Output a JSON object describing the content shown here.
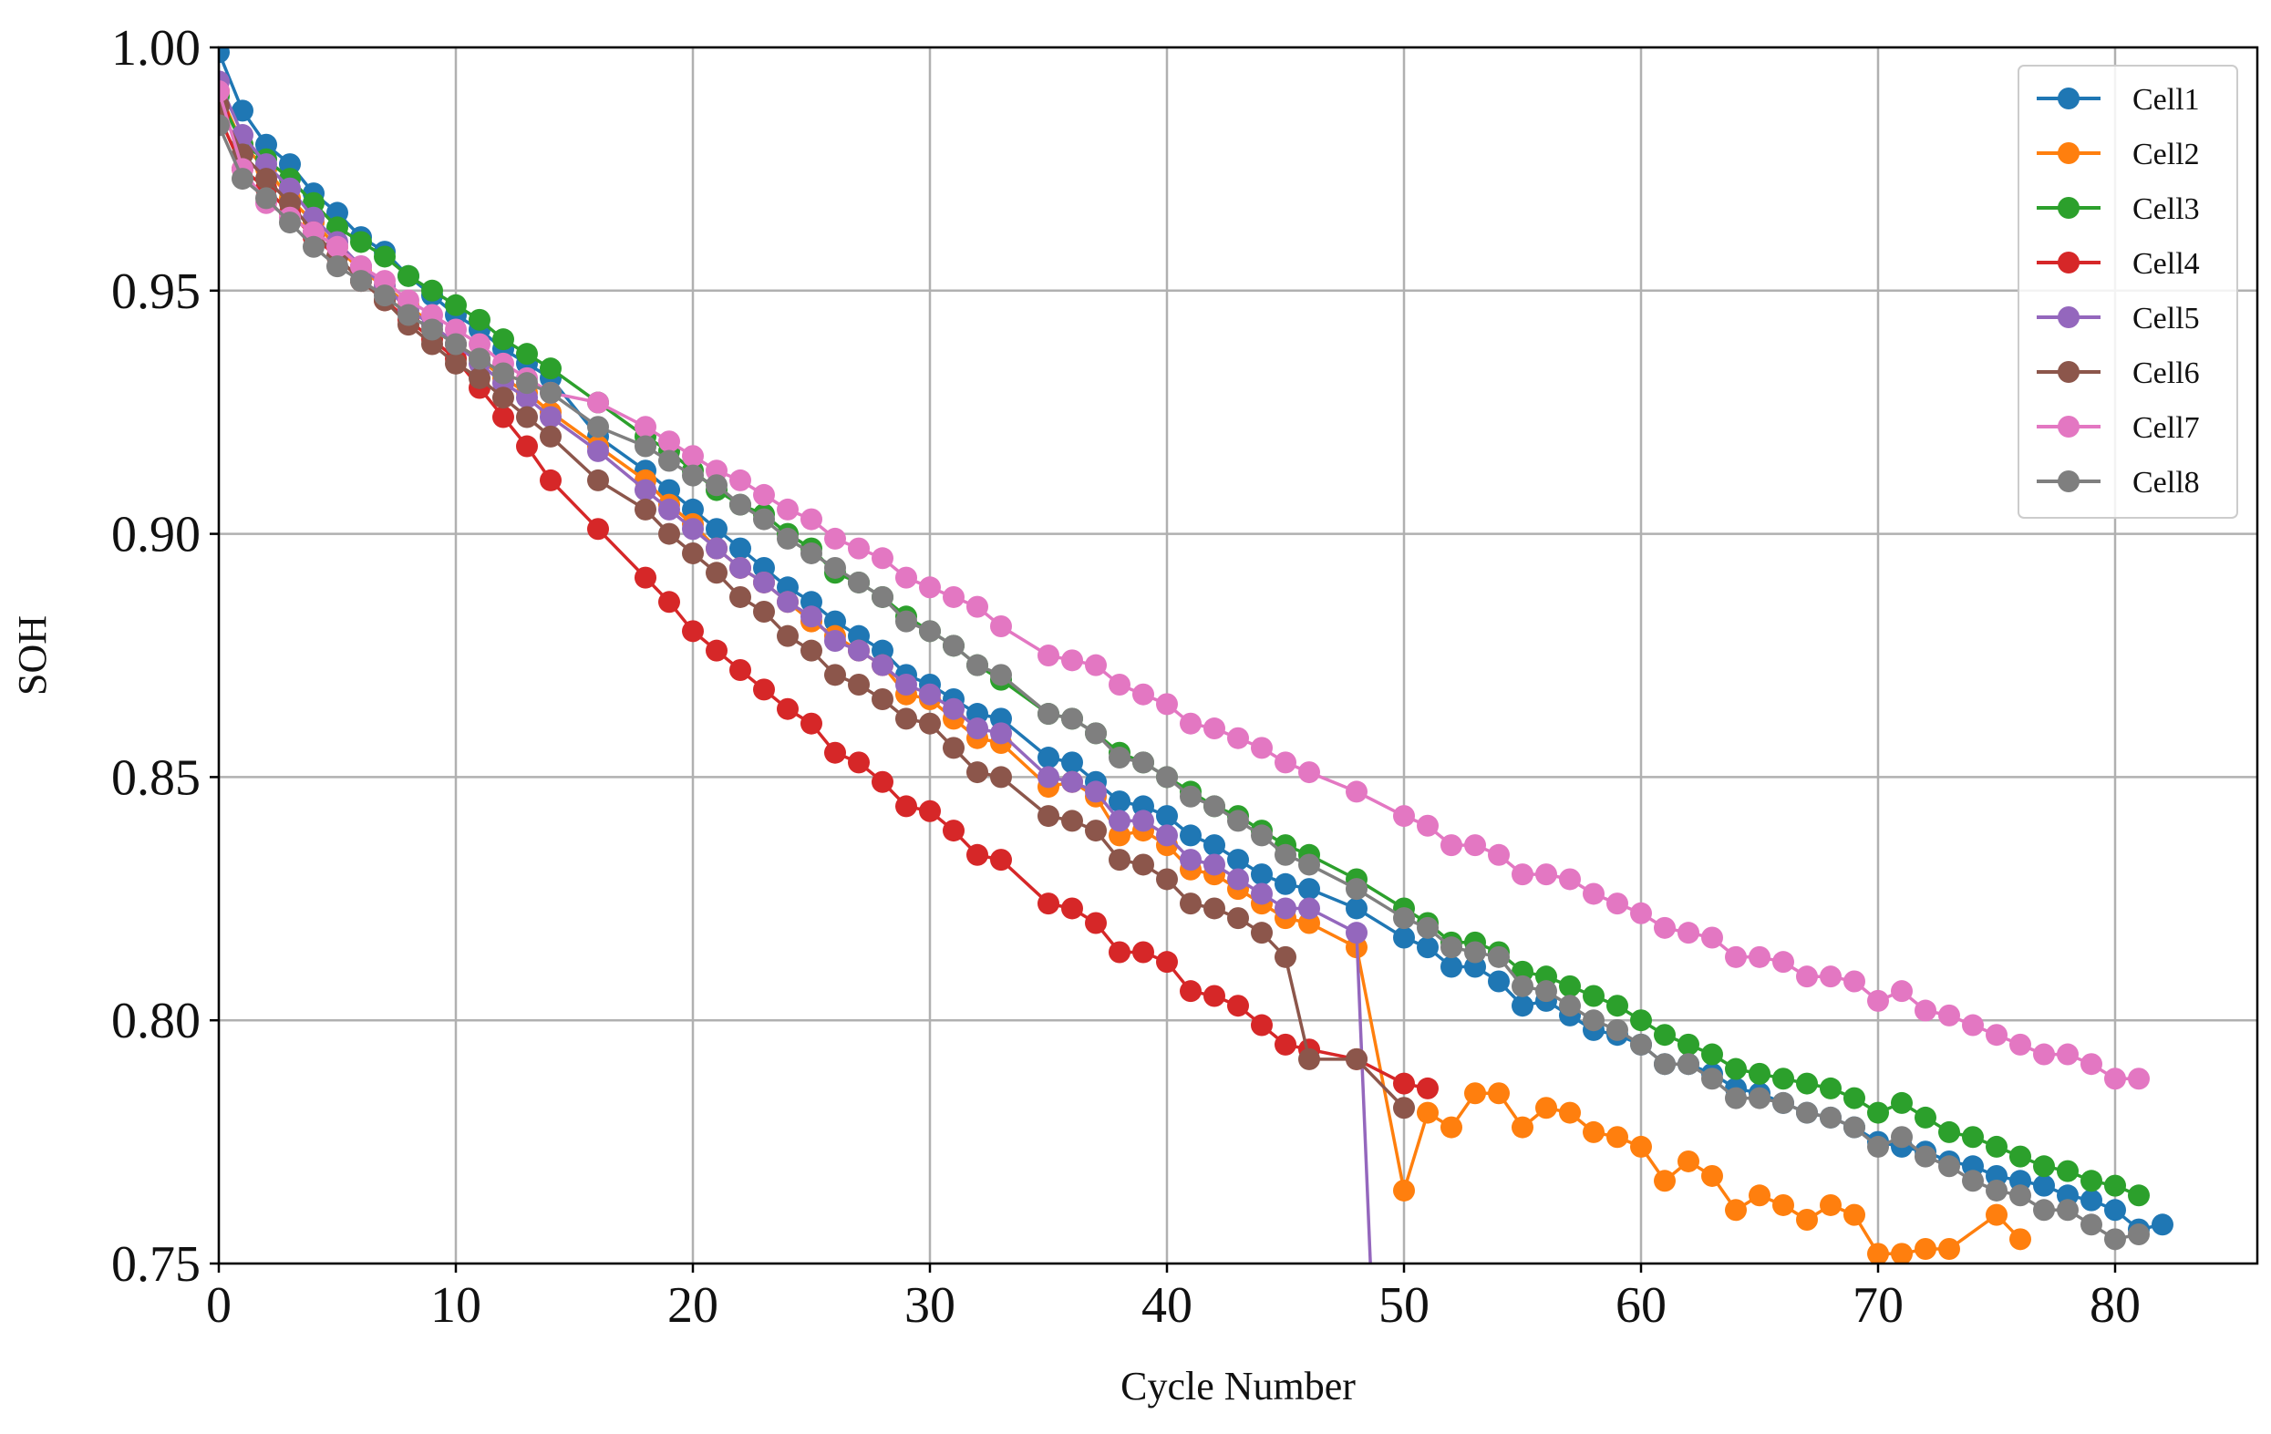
{
  "chart_data": {
    "type": "line",
    "xlabel": "Cycle Number",
    "ylabel": "SOH",
    "xlim": [
      0,
      86
    ],
    "ylim": [
      0.75,
      1.0
    ],
    "xticks": [
      "0",
      "10",
      "20",
      "30",
      "40",
      "50",
      "60",
      "70",
      "80"
    ],
    "yticks": [
      "0.75",
      "0.80",
      "0.85",
      "0.90",
      "0.95",
      "1.00"
    ],
    "grid": true,
    "legend_position": "top-right",
    "series": [
      {
        "name": "Cell1",
        "color": "#1f77b4",
        "x": [
          0,
          1,
          2,
          3,
          4,
          5,
          6,
          7,
          8,
          9,
          10,
          11,
          12,
          13,
          14,
          16,
          18,
          19,
          20,
          21,
          22,
          23,
          24,
          25,
          26,
          27,
          28,
          29,
          30,
          31,
          32,
          33,
          35,
          36,
          37,
          38,
          39,
          40,
          41,
          42,
          43,
          44,
          45,
          46,
          48,
          50,
          51,
          52,
          53,
          54,
          55,
          56,
          57,
          58,
          59,
          60,
          61,
          62,
          63,
          64,
          65,
          66,
          67,
          68,
          69,
          70,
          71,
          72,
          73,
          74,
          75,
          76,
          77,
          78,
          79,
          80,
          81,
          82
        ],
        "y": [
          0.999,
          0.987,
          0.98,
          0.976,
          0.97,
          0.966,
          0.961,
          0.958,
          0.953,
          0.949,
          0.945,
          0.942,
          0.938,
          0.935,
          0.932,
          0.92,
          0.913,
          0.909,
          0.905,
          0.901,
          0.897,
          0.893,
          0.889,
          0.886,
          0.882,
          0.879,
          0.876,
          0.871,
          0.869,
          0.866,
          0.863,
          0.862,
          0.854,
          0.853,
          0.849,
          0.845,
          0.844,
          0.842,
          0.838,
          0.836,
          0.833,
          0.83,
          0.828,
          0.827,
          0.823,
          0.817,
          0.815,
          0.811,
          0.811,
          0.808,
          0.803,
          0.804,
          0.801,
          0.798,
          0.797,
          0.795,
          0.791,
          0.791,
          0.789,
          0.786,
          0.785,
          0.783,
          0.781,
          0.78,
          0.778,
          0.775,
          0.774,
          0.773,
          0.771,
          0.77,
          0.768,
          0.767,
          0.766,
          0.764,
          0.763,
          0.761,
          0.757,
          0.758
        ]
      },
      {
        "name": "Cell2",
        "color": "#ff7f0e",
        "x": [
          0,
          1,
          2,
          3,
          4,
          5,
          6,
          7,
          8,
          9,
          10,
          11,
          12,
          13,
          14,
          16,
          18,
          19,
          20,
          21,
          22,
          23,
          24,
          25,
          26,
          27,
          28,
          29,
          30,
          31,
          32,
          33,
          35,
          36,
          37,
          38,
          39,
          40,
          41,
          42,
          43,
          44,
          45,
          46,
          48,
          50,
          51,
          52,
          53,
          54,
          55,
          56,
          57,
          58,
          59,
          60,
          61,
          62,
          63,
          64,
          65,
          66,
          67,
          68,
          69,
          70,
          71,
          72,
          73,
          75,
          76
        ],
        "y": [
          0.991,
          0.98,
          0.975,
          0.969,
          0.964,
          0.959,
          0.954,
          0.951,
          0.947,
          0.943,
          0.939,
          0.936,
          0.932,
          0.929,
          0.925,
          0.918,
          0.911,
          0.906,
          0.902,
          0.897,
          0.893,
          0.89,
          0.886,
          0.882,
          0.879,
          0.876,
          0.873,
          0.867,
          0.866,
          0.862,
          0.858,
          0.857,
          0.848,
          0.849,
          0.846,
          0.838,
          0.839,
          0.836,
          0.831,
          0.83,
          0.827,
          0.824,
          0.821,
          0.82,
          0.815,
          0.765,
          0.781,
          0.778,
          0.785,
          0.785,
          0.778,
          0.782,
          0.781,
          0.777,
          0.776,
          0.774,
          0.767,
          0.771,
          0.768,
          0.761,
          0.764,
          0.762,
          0.759,
          0.762,
          0.76,
          0.752,
          0.752,
          0.753,
          0.753,
          0.76,
          0.755
        ]
      },
      {
        "name": "Cell3",
        "color": "#2ca02c",
        "x": [
          0,
          1,
          2,
          3,
          4,
          5,
          6,
          7,
          8,
          9,
          10,
          11,
          12,
          13,
          14,
          16,
          18,
          19,
          20,
          21,
          22,
          23,
          24,
          25,
          26,
          27,
          28,
          29,
          30,
          31,
          32,
          33,
          35,
          36,
          37,
          38,
          39,
          40,
          41,
          42,
          43,
          44,
          45,
          46,
          48,
          50,
          51,
          52,
          53,
          54,
          55,
          56,
          57,
          58,
          59,
          60,
          61,
          62,
          63,
          64,
          65,
          66,
          67,
          68,
          69,
          70,
          71,
          72,
          73,
          74,
          75,
          76,
          77,
          78,
          79,
          80,
          81
        ],
        "y": [
          0.99,
          0.98,
          0.977,
          0.973,
          0.968,
          0.963,
          0.96,
          0.957,
          0.953,
          0.95,
          0.947,
          0.944,
          0.94,
          0.937,
          0.934,
          0.927,
          0.92,
          0.917,
          0.913,
          0.909,
          0.906,
          0.904,
          0.9,
          0.897,
          0.892,
          0.89,
          0.887,
          0.883,
          0.88,
          0.877,
          0.873,
          0.87,
          0.863,
          0.862,
          0.859,
          0.855,
          0.853,
          0.85,
          0.847,
          0.844,
          0.842,
          0.839,
          0.836,
          0.834,
          0.829,
          0.823,
          0.82,
          0.816,
          0.816,
          0.814,
          0.81,
          0.809,
          0.807,
          0.805,
          0.803,
          0.8,
          0.797,
          0.795,
          0.793,
          0.79,
          0.789,
          0.788,
          0.787,
          0.786,
          0.784,
          0.781,
          0.783,
          0.78,
          0.777,
          0.776,
          0.774,
          0.772,
          0.77,
          0.769,
          0.767,
          0.766,
          0.764
        ]
      },
      {
        "name": "Cell4",
        "color": "#d62728",
        "x": [
          0,
          1,
          2,
          3,
          4,
          5,
          6,
          7,
          8,
          9,
          10,
          11,
          12,
          13,
          14,
          16,
          18,
          19,
          20,
          21,
          22,
          23,
          24,
          25,
          26,
          27,
          28,
          29,
          30,
          31,
          32,
          33,
          35,
          36,
          37,
          38,
          39,
          40,
          41,
          42,
          43,
          44,
          45,
          46,
          48,
          50,
          51
        ],
        "y": [
          0.986,
          0.975,
          0.971,
          0.966,
          0.961,
          0.957,
          0.952,
          0.948,
          0.944,
          0.94,
          0.936,
          0.93,
          0.924,
          0.918,
          0.911,
          0.901,
          0.891,
          0.886,
          0.88,
          0.876,
          0.872,
          0.868,
          0.864,
          0.861,
          0.855,
          0.853,
          0.849,
          0.844,
          0.843,
          0.839,
          0.834,
          0.833,
          0.824,
          0.823,
          0.82,
          0.814,
          0.814,
          0.812,
          0.806,
          0.805,
          0.803,
          0.799,
          0.795,
          0.794,
          0.792,
          0.787,
          0.786
        ]
      },
      {
        "name": "Cell5",
        "color": "#9467bd",
        "x": [
          0,
          1,
          2,
          3,
          4,
          5,
          6,
          7,
          8,
          9,
          10,
          11,
          12,
          13,
          14,
          16,
          18,
          19,
          20,
          21,
          22,
          23,
          24,
          25,
          26,
          27,
          28,
          29,
          30,
          31,
          32,
          33,
          35,
          36,
          37,
          38,
          39,
          40,
          41,
          42,
          43,
          44,
          45,
          46,
          48,
          48.6
        ],
        "y": [
          0.993,
          0.982,
          0.976,
          0.971,
          0.965,
          0.96,
          0.955,
          0.951,
          0.946,
          0.943,
          0.939,
          0.935,
          0.931,
          0.928,
          0.924,
          0.917,
          0.909,
          0.905,
          0.901,
          0.897,
          0.893,
          0.89,
          0.886,
          0.883,
          0.878,
          0.876,
          0.873,
          0.869,
          0.867,
          0.864,
          0.86,
          0.859,
          0.85,
          0.849,
          0.847,
          0.841,
          0.841,
          0.838,
          0.833,
          0.832,
          0.829,
          0.826,
          0.823,
          0.823,
          0.818,
          0.748
        ]
      },
      {
        "name": "Cell6",
        "color": "#8c564b",
        "x": [
          0,
          1,
          2,
          3,
          4,
          5,
          6,
          7,
          8,
          9,
          10,
          11,
          12,
          13,
          14,
          16,
          18,
          19,
          20,
          21,
          22,
          23,
          24,
          25,
          26,
          27,
          28,
          29,
          30,
          31,
          32,
          33,
          35,
          36,
          37,
          38,
          39,
          40,
          41,
          42,
          43,
          44,
          45,
          46,
          48,
          50
        ],
        "y": [
          0.988,
          0.978,
          0.973,
          0.968,
          0.962,
          0.957,
          0.952,
          0.948,
          0.943,
          0.939,
          0.935,
          0.932,
          0.928,
          0.924,
          0.92,
          0.911,
          0.905,
          0.9,
          0.896,
          0.892,
          0.887,
          0.884,
          0.879,
          0.876,
          0.871,
          0.869,
          0.866,
          0.862,
          0.861,
          0.856,
          0.851,
          0.85,
          0.842,
          0.841,
          0.839,
          0.833,
          0.832,
          0.829,
          0.824,
          0.823,
          0.821,
          0.818,
          0.813,
          0.792,
          0.792,
          0.782
        ]
      },
      {
        "name": "Cell7",
        "color": "#e377c2",
        "x": [
          0,
          1,
          2,
          3,
          4,
          5,
          6,
          7,
          8,
          9,
          10,
          11,
          12,
          13,
          14,
          16,
          18,
          19,
          20,
          21,
          22,
          23,
          24,
          25,
          26,
          27,
          28,
          29,
          30,
          31,
          32,
          33,
          35,
          36,
          37,
          38,
          39,
          40,
          41,
          42,
          43,
          44,
          45,
          46,
          48,
          50,
          51,
          52,
          53,
          54,
          55,
          56,
          57,
          58,
          59,
          60,
          61,
          62,
          63,
          64,
          65,
          66,
          67,
          68,
          69,
          70,
          71,
          72,
          73,
          74,
          75,
          76,
          77,
          78,
          79,
          80,
          81
        ],
        "y": [
          0.991,
          0.975,
          0.968,
          0.965,
          0.962,
          0.959,
          0.955,
          0.952,
          0.948,
          0.945,
          0.942,
          0.939,
          0.935,
          0.932,
          0.929,
          0.927,
          0.922,
          0.919,
          0.916,
          0.913,
          0.911,
          0.908,
          0.905,
          0.903,
          0.899,
          0.897,
          0.895,
          0.891,
          0.889,
          0.887,
          0.885,
          0.881,
          0.875,
          0.874,
          0.873,
          0.869,
          0.867,
          0.865,
          0.861,
          0.86,
          0.858,
          0.856,
          0.853,
          0.851,
          0.847,
          0.842,
          0.84,
          0.836,
          0.836,
          0.834,
          0.83,
          0.83,
          0.829,
          0.826,
          0.824,
          0.822,
          0.819,
          0.818,
          0.817,
          0.813,
          0.813,
          0.812,
          0.809,
          0.809,
          0.808,
          0.804,
          0.806,
          0.802,
          0.801,
          0.799,
          0.797,
          0.795,
          0.793,
          0.793,
          0.791,
          0.788,
          0.788
        ]
      },
      {
        "name": "Cell8",
        "color": "#7f7f7f",
        "x": [
          0,
          1,
          2,
          3,
          4,
          5,
          6,
          7,
          8,
          9,
          10,
          11,
          12,
          13,
          14,
          16,
          18,
          19,
          20,
          21,
          22,
          23,
          24,
          25,
          26,
          27,
          28,
          29,
          30,
          31,
          32,
          33,
          35,
          36,
          37,
          38,
          39,
          40,
          41,
          42,
          43,
          44,
          45,
          46,
          48,
          50,
          51,
          52,
          53,
          54,
          55,
          56,
          57,
          58,
          59,
          60,
          61,
          62,
          63,
          64,
          65,
          66,
          67,
          68,
          69,
          70,
          71,
          72,
          73,
          74,
          75,
          76,
          77,
          78,
          79,
          80,
          81
        ],
        "y": [
          0.984,
          0.973,
          0.969,
          0.964,
          0.959,
          0.955,
          0.952,
          0.949,
          0.945,
          0.942,
          0.939,
          0.936,
          0.933,
          0.931,
          0.929,
          0.922,
          0.918,
          0.915,
          0.912,
          0.91,
          0.906,
          0.903,
          0.899,
          0.896,
          0.893,
          0.89,
          0.887,
          0.882,
          0.88,
          0.877,
          0.873,
          0.871,
          0.863,
          0.862,
          0.859,
          0.854,
          0.853,
          0.85,
          0.846,
          0.844,
          0.841,
          0.838,
          0.834,
          0.832,
          0.827,
          0.821,
          0.819,
          0.815,
          0.814,
          0.813,
          0.807,
          0.806,
          0.803,
          0.8,
          0.798,
          0.795,
          0.791,
          0.791,
          0.788,
          0.784,
          0.784,
          0.783,
          0.781,
          0.78,
          0.778,
          0.774,
          0.776,
          0.772,
          0.77,
          0.767,
          0.765,
          0.764,
          0.761,
          0.761,
          0.758,
          0.755,
          0.756
        ]
      }
    ]
  }
}
